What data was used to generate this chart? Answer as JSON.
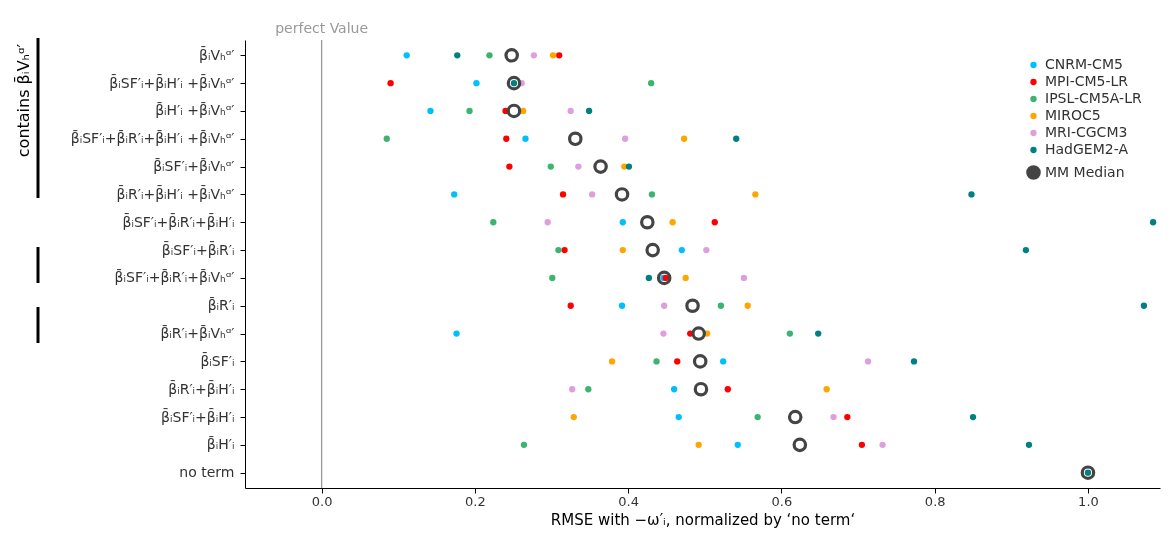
{
  "chart_data": {
    "type": "scatter",
    "categories": [
      "β̄ᵢVₕᵅ′",
      "β̄ᵢSF′ᵢ+β̄ᵢH′ᵢ +β̄ᵢVₕᵅ′",
      "β̄ᵢH′ᵢ +β̄ᵢVₕᵅ′",
      "β̄ᵢSF′ᵢ+β̄ᵢR′ᵢ+β̄ᵢH′ᵢ +β̄ᵢVₕᵅ′",
      "β̄ᵢSF′ᵢ+β̄ᵢVₕᵅ′",
      "β̄ᵢR′ᵢ+β̄ᵢH′ᵢ +β̄ᵢVₕᵅ′",
      "β̄ᵢSF′ᵢ+β̄ᵢR′ᵢ+β̄ᵢH′ᵢ",
      "β̄ᵢSF′ᵢ+β̄ᵢR′ᵢ",
      "β̄ᵢSF′ᵢ+β̄ᵢR′ᵢ+β̄ᵢVₕᵅ′",
      "β̄ᵢR′ᵢ",
      "β̄ᵢR′ᵢ+β̄ᵢVₕᵅ′",
      "β̄ᵢSF′ᵢ",
      "β̄ᵢR′ᵢ+β̄ᵢH′ᵢ",
      "β̄ᵢSF′ᵢ+β̄ᵢH′ᵢ",
      "β̄ᵢH′ᵢ",
      "no term"
    ],
    "orientation": "horizontal",
    "xlabel": "RMSE with −ω′ᵢ, normalized by ‘no term‘",
    "ylabel": "contains β̄ᵢVₕᵅ′",
    "xlim": [
      -0.1,
      1.094
    ],
    "xticks": [
      {
        "value": 0,
        "label": "0.0"
      },
      {
        "value": 0.2,
        "label": "0.2"
      },
      {
        "value": 0.4,
        "label": "0.4"
      },
      {
        "value": 0.6,
        "label": "0.6"
      },
      {
        "value": 0.8,
        "label": "0.8"
      },
      {
        "value": 1.0,
        "label": "1.0"
      }
    ],
    "grid": false,
    "legend": "top right",
    "marker": "circle",
    "ref_lines": [
      {
        "axis": "x",
        "value": 0,
        "label": "perfect Value",
        "color": "#999999"
      }
    ],
    "series": [
      {
        "name": "CNRM-CM5",
        "color": "#00bfff",
        "values": [
          0.111,
          0.202,
          0.142,
          0.266,
          null,
          0.173,
          0.393,
          0.47,
          0.446,
          0.392,
          0.176,
          0.524,
          0.46,
          0.466,
          0.543,
          null
        ]
      },
      {
        "name": "MPI-CM5-LR",
        "color": "#ff0000",
        "values": [
          0.31,
          0.09,
          0.24,
          0.241,
          0.245,
          0.315,
          0.513,
          0.317,
          0.449,
          0.325,
          0.481,
          0.464,
          0.53,
          0.686,
          0.705,
          null
        ]
      },
      {
        "name": "IPSL-CM5A-LR",
        "color": "#3cb371",
        "values": [
          0.219,
          0.43,
          0.193,
          0.085,
          0.299,
          0.431,
          0.224,
          0.309,
          0.301,
          0.521,
          0.611,
          0.437,
          0.348,
          0.569,
          0.264,
          null
        ]
      },
      {
        "name": "MIROC5",
        "color": "#ffa500",
        "values": [
          0.302,
          null,
          0.263,
          0.473,
          0.395,
          0.566,
          0.458,
          0.393,
          0.475,
          0.556,
          0.503,
          0.379,
          0.659,
          0.329,
          0.492,
          null
        ]
      },
      {
        "name": "MRI-CGCM3",
        "color": "#dda0dd",
        "values": [
          0.277,
          0.261,
          0.325,
          0.396,
          0.335,
          0.353,
          0.295,
          0.502,
          0.551,
          0.447,
          0.446,
          0.713,
          0.327,
          0.668,
          0.732,
          null
        ]
      },
      {
        "name": "HadGEM2-A",
        "color": "#008080",
        "values": [
          0.177,
          0.251,
          0.349,
          0.541,
          0.401,
          0.848,
          1.085,
          0.919,
          0.427,
          1.073,
          0.648,
          0.773,
          null,
          0.85,
          0.923,
          1.0
        ]
      },
      {
        "name": "MM Median",
        "color": "#444444",
        "values": [
          0.248,
          0.251,
          0.251,
          0.331,
          0.364,
          0.392,
          0.425,
          0.432,
          0.447,
          0.484,
          0.492,
          0.494,
          0.495,
          0.618,
          0.624,
          1.0
        ]
      }
    ]
  }
}
